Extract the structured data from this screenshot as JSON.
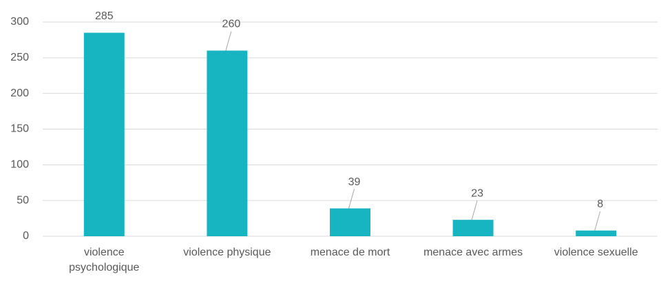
{
  "chart_data": {
    "type": "bar",
    "categories": [
      "violence psychologique",
      "violence physique",
      "menace de mort",
      "menace avec armes",
      "violence sexuelle"
    ],
    "values": [
      285,
      260,
      39,
      23,
      8
    ],
    "color": "#17b4c2",
    "ylim": [
      0,
      300
    ],
    "yticks": [
      0,
      50,
      100,
      150,
      200,
      250,
      300
    ],
    "grid": true
  }
}
